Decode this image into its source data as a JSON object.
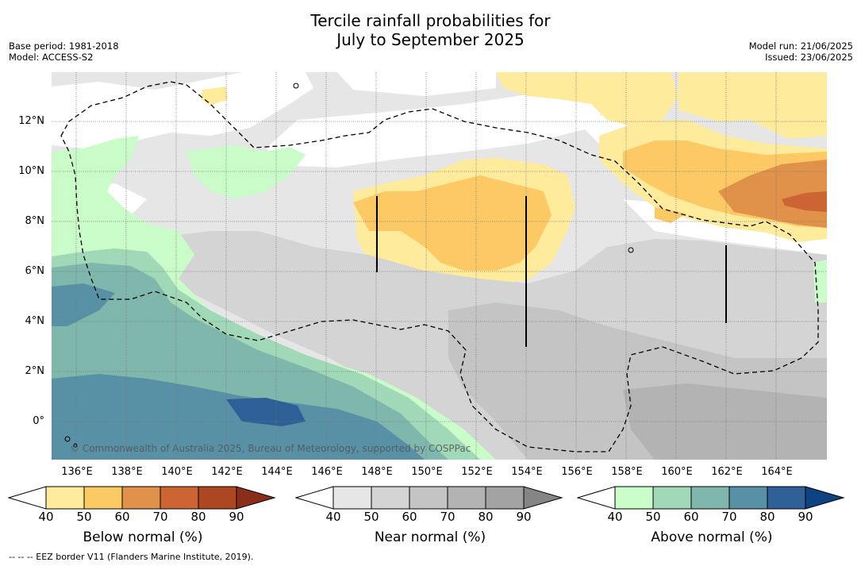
{
  "title": {
    "line1": "Tercile rainfall probabilities for",
    "line2": "July to September 2025"
  },
  "meta": {
    "base_period": "Base period: 1981-2018",
    "model": "Model: ACCESS-S2",
    "model_run": "Model run: 21/06/2025",
    "issued": "Issued: 23/06/2025"
  },
  "map": {
    "lat_labels": [
      "12°N",
      "10°N",
      "8°N",
      "6°N",
      "4°N",
      "2°N",
      "0°"
    ],
    "lon_labels": [
      "136°E",
      "138°E",
      "140°E",
      "142°E",
      "144°E",
      "146°E",
      "148°E",
      "150°E",
      "152°E",
      "154°E",
      "156°E",
      "158°E",
      "160°E",
      "162°E",
      "164°E"
    ],
    "credit": "© Commonwealth of Australia 2025, Bureau of Meteorology, supported by COSPPac"
  },
  "colorbars": [
    {
      "label": "Below normal (%)",
      "ticks": [
        "40",
        "50",
        "60",
        "70",
        "80",
        "90"
      ],
      "colors": [
        "#ffffff",
        "#ffeb9c",
        "#fdc965",
        "#e0914a",
        "#cc6433",
        "#ad4722",
        "#8a2d1a"
      ]
    },
    {
      "label": "Near normal (%)",
      "ticks": [
        "40",
        "50",
        "60",
        "70",
        "80",
        "90"
      ],
      "colors": [
        "#ffffff",
        "#e6e6e6",
        "#d4d4d4",
        "#c4c4c4",
        "#b3b3b3",
        "#a3a3a3",
        "#858585"
      ]
    },
    {
      "label": "Above normal (%)",
      "ticks": [
        "40",
        "50",
        "60",
        "70",
        "80",
        "90"
      ],
      "colors": [
        "#ffffff",
        "#c9fcc9",
        "#a0d8b8",
        "#7fb7ad",
        "#5891a6",
        "#2e5f96",
        "#0e4383"
      ]
    }
  ],
  "footer": "--  --  -- EEZ border V11 (Flanders Marine Institute, 2019)."
}
